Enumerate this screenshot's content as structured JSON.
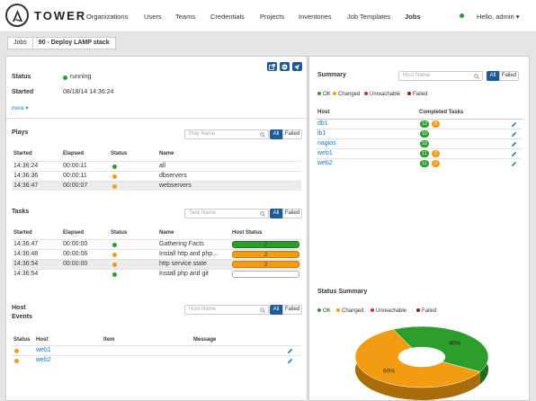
{
  "nav": {
    "brand": "TOWER",
    "items": [
      "Organizations",
      "Users",
      "Teams",
      "Credentials",
      "Projects",
      "Inventories",
      "Job Templates",
      "Jobs"
    ],
    "user": "Hello, admin"
  },
  "breadcrumb": {
    "parent": "Jobs",
    "current": "90 - Deploy LAMP stack"
  },
  "status_panel": {
    "status_label": "Status",
    "status_value": "running",
    "started_label": "Started",
    "started_value": "08/18/14 14:36:24",
    "more": "more"
  },
  "plays": {
    "title": "Plays",
    "search_placeholder": "Play Name",
    "all": "All",
    "failed": "Failed",
    "headers": [
      "Started",
      "Elapsed",
      "Status",
      "Name"
    ],
    "rows": [
      {
        "started": "14:36:24",
        "elapsed": "00:00:11",
        "status": "green",
        "name": "all"
      },
      {
        "started": "14:36:36",
        "elapsed": "00:00:11",
        "status": "orange",
        "name": "dbservers"
      },
      {
        "started": "14:36:47",
        "elapsed": "00:00:07",
        "status": "orange",
        "name": "webservers"
      }
    ]
  },
  "tasks": {
    "title": "Tasks",
    "search_placeholder": "Task Name",
    "all": "All",
    "failed": "Failed",
    "headers": [
      "Started",
      "Elapsed",
      "Status",
      "Name",
      "Host Status"
    ],
    "rows": [
      {
        "started": "14:36:47",
        "elapsed": "00:00:00",
        "status": "green",
        "name": "Gathering Facts",
        "bar": "green",
        "count": "2"
      },
      {
        "started": "14:36:48",
        "elapsed": "00:00:06",
        "status": "orange",
        "name": "Install http and php...",
        "bar": "orange",
        "count": "2"
      },
      {
        "started": "14:36:54",
        "elapsed": "00:00:00",
        "status": "orange",
        "name": "http service state",
        "bar": "orange",
        "count": "2"
      },
      {
        "started": "14:36:54",
        "elapsed": "",
        "status": "green",
        "name": "Install php and git",
        "bar": "empty",
        "count": ""
      }
    ]
  },
  "host_events": {
    "title_line1": "Host",
    "title_line2": "Events",
    "search_placeholder": "Host Name",
    "all": "All",
    "failed": "Failed",
    "headers": [
      "Status",
      "Host",
      "Item",
      "Message"
    ],
    "rows": [
      {
        "status": "orange",
        "host": "web1"
      },
      {
        "status": "orange",
        "host": "web2"
      }
    ]
  },
  "summary": {
    "title": "Summary",
    "search_placeholder": "Host Name",
    "all": "All",
    "failed": "Failed",
    "legend": [
      "OK",
      "Changed",
      "Unreachable",
      "Failed"
    ],
    "headers": [
      "Host",
      "Completed Tasks"
    ],
    "rows": [
      {
        "host": "db1",
        "ok": "12",
        "changed": "5"
      },
      {
        "host": "lb1",
        "ok": "10",
        "changed": ""
      },
      {
        "host": "nagios",
        "ok": "10",
        "changed": ""
      },
      {
        "host": "web1",
        "ok": "11",
        "changed": "2"
      },
      {
        "host": "web2",
        "ok": "11",
        "changed": "2"
      }
    ]
  },
  "status_summary": {
    "title": "Status Summary",
    "legend": [
      "OK",
      "Changed",
      "Unreachable",
      "Failed"
    ]
  },
  "chart_data": {
    "type": "pie",
    "categories": [
      "Changed",
      "OK"
    ],
    "values": [
      60,
      40
    ],
    "labels": [
      "60%",
      "40%"
    ],
    "colors": [
      "#f39c12",
      "#2a9d2a"
    ]
  },
  "colors": {
    "ok": "#2a9d2a",
    "changed": "#f39c12",
    "unreachable": "#c9302c",
    "failed": "#8b1a1a",
    "accent": "#1f5b99"
  }
}
